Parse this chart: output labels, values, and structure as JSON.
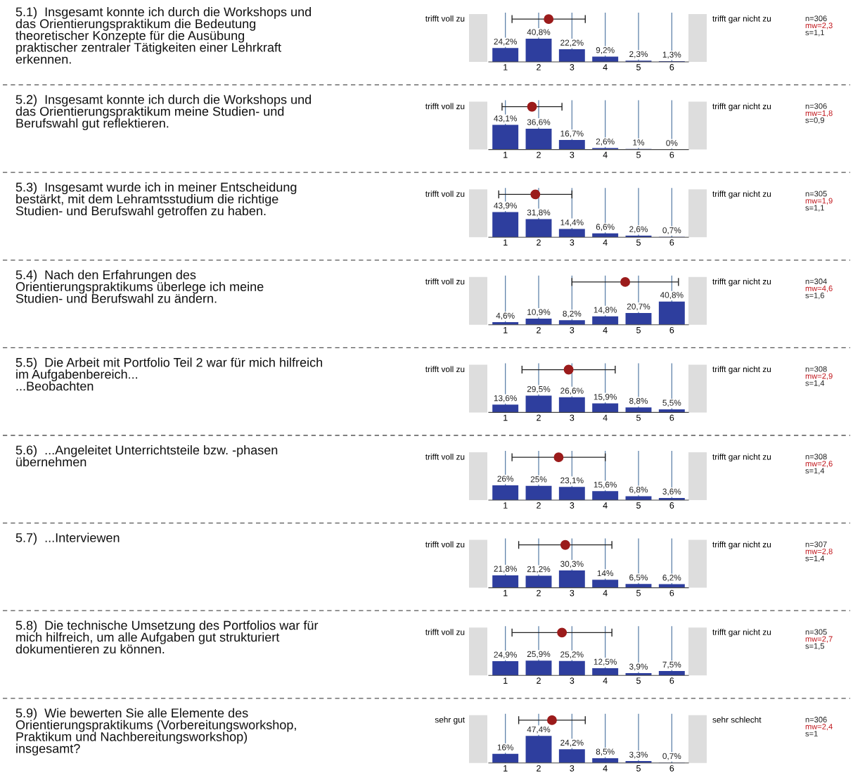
{
  "chart_data": [
    {
      "type": "bar",
      "x": [
        1,
        2,
        3,
        4,
        5,
        6
      ],
      "xlim": [
        0.5,
        6.5
      ],
      "xticks": [
        1,
        2,
        3,
        4,
        5,
        6
      ],
      "tick_labels": "x",
      "grid": "x",
      "series": [
        {
          "color": "#2e3e9e",
          "values": [
            24.2,
            40.8,
            22.2,
            9.2,
            2.3,
            1.3
          ],
          "value_labels": [
            "24,2%",
            "40,8%",
            "22,2%",
            "9,2%",
            "2,3%",
            "1,3%"
          ]
        },
        {
          "type": "scatter",
          "x": [
            2.3
          ],
          "values": [
            75
          ],
          "xerrors": [
            1.1
          ],
          "color": "#9b1b1b",
          "marker": "circle"
        }
      ],
      "annotations": [
        "5.1)  Insgesamt konnte ich durch die Workshops und\ndas Orientierungspraktikum die Bedeutung\ntheoretischer Konzepte für die Ausübung\npraktischer zentraler Tätigkeiten einer Lehrkraft\nerkennen.",
        "trifft voll zu",
        "trifft gar nicht zu",
        "n=306",
        "mw=2,3",
        "s=1,1"
      ]
    },
    {
      "type": "bar",
      "x": [
        1,
        2,
        3,
        4,
        5,
        6
      ],
      "xlim": [
        0.5,
        6.5
      ],
      "xticks": [
        1,
        2,
        3,
        4,
        5,
        6
      ],
      "tick_labels": "x",
      "grid": "x",
      "series": [
        {
          "color": "#2e3e9e",
          "values": [
            43.1,
            36.6,
            16.7,
            2.6,
            1,
            0
          ],
          "value_labels": [
            "43,1%",
            "36,6%",
            "16,7%",
            "2,6%",
            "1%",
            "0%"
          ]
        },
        {
          "type": "scatter",
          "x": [
            1.8
          ],
          "values": [
            75
          ],
          "xerrors": [
            0.9
          ],
          "color": "#9b1b1b",
          "marker": "circle"
        }
      ],
      "annotations": [
        "5.2)  Insgesamt konnte ich durch die Workshops und\ndas Orientierungspraktikum meine Studien- und\nBerufswahl gut reflektieren.",
        "trifft voll zu",
        "trifft gar nicht zu",
        "n=306",
        "mw=1,8",
        "s=0,9"
      ]
    },
    {
      "type": "bar",
      "x": [
        1,
        2,
        3,
        4,
        5,
        6
      ],
      "xlim": [
        0.5,
        6.5
      ],
      "xticks": [
        1,
        2,
        3,
        4,
        5,
        6
      ],
      "tick_labels": "x",
      "grid": "x",
      "series": [
        {
          "color": "#2e3e9e",
          "values": [
            43.9,
            31.8,
            14.4,
            6.6,
            2.6,
            0.7
          ],
          "value_labels": [
            "43,9%",
            "31,8%",
            "14,4%",
            "6,6%",
            "2,6%",
            "0,7%"
          ]
        },
        {
          "type": "scatter",
          "x": [
            1.9
          ],
          "values": [
            75
          ],
          "xerrors": [
            1.1
          ],
          "color": "#9b1b1b",
          "marker": "circle"
        }
      ],
      "annotations": [
        "5.3)  Insgesamt wurde ich in meiner Entscheidung\nbestärkt, mit dem Lehramtsstudium die richtige\nStudien- und Berufswahl getroffen zu haben.",
        "trifft voll zu",
        "trifft gar nicht zu",
        "n=305",
        "mw=1,9",
        "s=1,1"
      ]
    },
    {
      "type": "bar",
      "x": [
        1,
        2,
        3,
        4,
        5,
        6
      ],
      "xlim": [
        0.5,
        6.5
      ],
      "xticks": [
        1,
        2,
        3,
        4,
        5,
        6
      ],
      "tick_labels": "x",
      "grid": "x",
      "series": [
        {
          "color": "#2e3e9e",
          "values": [
            4.6,
            10.9,
            8.2,
            14.8,
            20.7,
            40.8
          ],
          "value_labels": [
            "4,6%",
            "10,9%",
            "8,2%",
            "14,8%",
            "20,7%",
            "40,8%"
          ]
        },
        {
          "type": "scatter",
          "x": [
            4.6
          ],
          "values": [
            75
          ],
          "xerrors": [
            1.6
          ],
          "color": "#9b1b1b",
          "marker": "circle"
        }
      ],
      "annotations": [
        "5.4)  Nach den Erfahrungen des\nOrientierungspraktikums überlege ich meine\nStudien- und Berufswahl zu ändern.",
        "trifft voll zu",
        "trifft gar nicht zu",
        "n=304",
        "mw=4,6",
        "s=1,6"
      ]
    },
    {
      "type": "bar",
      "x": [
        1,
        2,
        3,
        4,
        5,
        6
      ],
      "xlim": [
        0.5,
        6.5
      ],
      "xticks": [
        1,
        2,
        3,
        4,
        5,
        6
      ],
      "tick_labels": "x",
      "grid": "x",
      "series": [
        {
          "color": "#2e3e9e",
          "values": [
            13.6,
            29.5,
            26.6,
            15.9,
            8.8,
            5.5
          ],
          "value_labels": [
            "13,6%",
            "29,5%",
            "26,6%",
            "15,9%",
            "8,8%",
            "5,5%"
          ]
        },
        {
          "type": "scatter",
          "x": [
            2.9
          ],
          "values": [
            75
          ],
          "xerrors": [
            1.4
          ],
          "color": "#9b1b1b",
          "marker": "circle"
        }
      ],
      "annotations": [
        "5.5)  Die Arbeit mit Portfolio Teil 2 war für mich hilfreich\nim Aufgabenbereich...\n...Beobachten",
        "trifft voll zu",
        "trifft gar nicht zu",
        "n=308",
        "mw=2,9",
        "s=1,4"
      ]
    },
    {
      "type": "bar",
      "x": [
        1,
        2,
        3,
        4,
        5,
        6
      ],
      "xlim": [
        0.5,
        6.5
      ],
      "xticks": [
        1,
        2,
        3,
        4,
        5,
        6
      ],
      "tick_labels": "x",
      "grid": "x",
      "series": [
        {
          "color": "#2e3e9e",
          "values": [
            26,
            25,
            23.1,
            15.6,
            6.8,
            3.6
          ],
          "value_labels": [
            "26%",
            "25%",
            "23,1%",
            "15,6%",
            "6,8%",
            "3,6%"
          ]
        },
        {
          "type": "scatter",
          "x": [
            2.6
          ],
          "values": [
            75
          ],
          "xerrors": [
            1.4
          ],
          "color": "#9b1b1b",
          "marker": "circle"
        }
      ],
      "annotations": [
        "5.6)  ...Angeleitet Unterrichtsteile bzw. -phasen\nübernehmen",
        "trifft voll zu",
        "trifft gar nicht zu",
        "n=308",
        "mw=2,6",
        "s=1,4"
      ]
    },
    {
      "type": "bar",
      "x": [
        1,
        2,
        3,
        4,
        5,
        6
      ],
      "xlim": [
        0.5,
        6.5
      ],
      "xticks": [
        1,
        2,
        3,
        4,
        5,
        6
      ],
      "tick_labels": "x",
      "grid": "x",
      "series": [
        {
          "color": "#2e3e9e",
          "values": [
            21.8,
            21.2,
            30.3,
            14,
            6.5,
            6.2
          ],
          "value_labels": [
            "21,8%",
            "21,2%",
            "30,3%",
            "14%",
            "6,5%",
            "6,2%"
          ]
        },
        {
          "type": "scatter",
          "x": [
            2.8
          ],
          "values": [
            75
          ],
          "xerrors": [
            1.4
          ],
          "color": "#9b1b1b",
          "marker": "circle"
        }
      ],
      "annotations": [
        "5.7)  ...Interviewen",
        "trifft voll zu",
        "trifft gar nicht zu",
        "n=307",
        "mw=2,8",
        "s=1,4"
      ]
    },
    {
      "type": "bar",
      "x": [
        1,
        2,
        3,
        4,
        5,
        6
      ],
      "xlim": [
        0.5,
        6.5
      ],
      "xticks": [
        1,
        2,
        3,
        4,
        5,
        6
      ],
      "tick_labels": "x",
      "grid": "x",
      "series": [
        {
          "color": "#2e3e9e",
          "values": [
            24.9,
            25.9,
            25.2,
            12.5,
            3.9,
            7.5
          ],
          "value_labels": [
            "24,9%",
            "25,9%",
            "25,2%",
            "12,5%",
            "3,9%",
            "7,5%"
          ]
        },
        {
          "type": "scatter",
          "x": [
            2.7
          ],
          "values": [
            75
          ],
          "xerrors": [
            1.5
          ],
          "color": "#9b1b1b",
          "marker": "circle"
        }
      ],
      "annotations": [
        "5.8)  Die technische Umsetzung des Portfolios war für\nmich hilfreich, um alle Aufgaben gut strukturiert\ndokumentieren zu können.",
        "trifft voll zu",
        "trifft gar nicht zu",
        "n=305",
        "mw=2,7",
        "s=1,5"
      ]
    },
    {
      "type": "bar",
      "x": [
        1,
        2,
        3,
        4,
        5,
        6
      ],
      "xlim": [
        0.5,
        6.5
      ],
      "xticks": [
        1,
        2,
        3,
        4,
        5,
        6
      ],
      "tick_labels": "x",
      "grid": "x",
      "series": [
        {
          "color": "#2e3e9e",
          "values": [
            16,
            47.4,
            24.2,
            8.5,
            3.3,
            0.7
          ],
          "value_labels": [
            "16%",
            "47,4%",
            "24,2%",
            "8,5%",
            "3,3%",
            "0,7%"
          ]
        },
        {
          "type": "scatter",
          "x": [
            2.4
          ],
          "values": [
            75
          ],
          "xerrors": [
            1
          ],
          "color": "#9b1b1b",
          "marker": "circle"
        }
      ],
      "annotations": [
        "5.9)  Wie bewerten Sie alle Elemente des\nOrientierungspraktikums (Vorbereitungsworkshop,\nPraktikum und Nachbereitungsworkshop)\ninsgesamt?",
        "sehr gut",
        "sehr schlecht",
        "n=306",
        "mw=2,4",
        "s=1"
      ]
    }
  ]
}
